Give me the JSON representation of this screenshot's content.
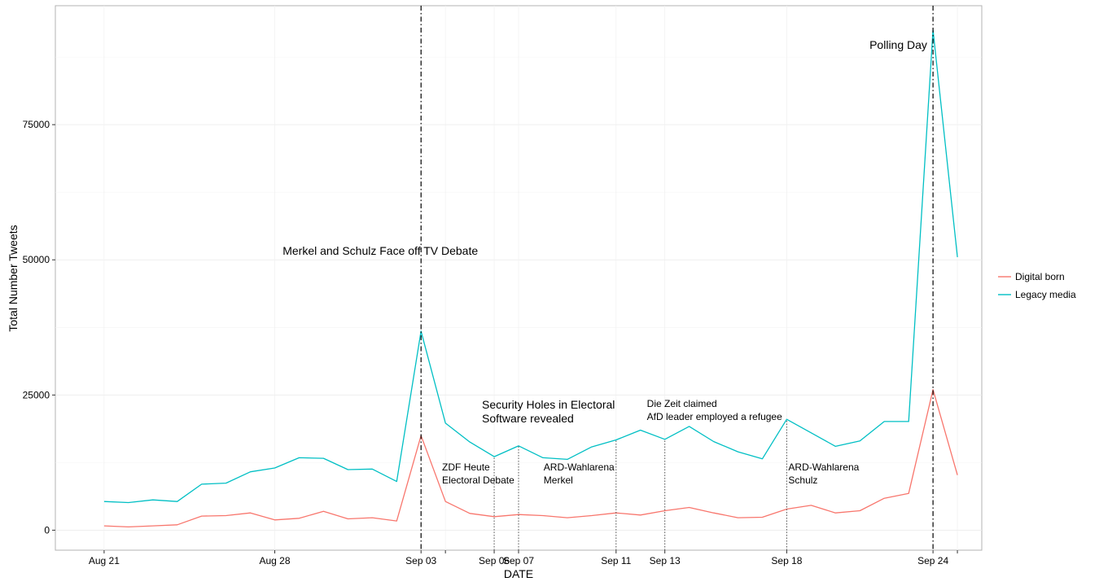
{
  "chart_data": {
    "type": "line",
    "xlabel": "DATE",
    "ylabel": "Total Number Tweets",
    "ylim": [
      -3700,
      97000
    ],
    "xlim": [
      "2017-08-19",
      "2017-09-26"
    ],
    "y_ticks": [
      0,
      25000,
      50000,
      75000
    ],
    "y_tick_labels": [
      "0",
      "25000",
      "50000",
      "75000"
    ],
    "x_ticks": [
      {
        "date": "2017-08-21",
        "label": "Aug 21"
      },
      {
        "date": "2017-08-28",
        "label": "Aug 28"
      },
      {
        "date": "2017-09-03",
        "label": "Sep 03"
      },
      {
        "date": "2017-09-04",
        "label": ""
      },
      {
        "date": "2017-09-06",
        "label": "Sep 06"
      },
      {
        "date": "2017-09-07",
        "label": "Sep 07"
      },
      {
        "date": "2017-09-11",
        "label": "Sep 11"
      },
      {
        "date": "2017-09-13",
        "label": "Sep 13"
      },
      {
        "date": "2017-09-18",
        "label": "Sep 18"
      },
      {
        "date": "2017-09-24",
        "label": "Sep 24"
      },
      {
        "date": "2017-09-25",
        "label": ""
      }
    ],
    "grid": true,
    "legend_position": "right",
    "x": [
      "2017-08-21",
      "2017-08-22",
      "2017-08-23",
      "2017-08-24",
      "2017-08-25",
      "2017-08-26",
      "2017-08-27",
      "2017-08-28",
      "2017-08-29",
      "2017-08-30",
      "2017-08-31",
      "2017-09-01",
      "2017-09-02",
      "2017-09-03",
      "2017-09-04",
      "2017-09-05",
      "2017-09-06",
      "2017-09-07",
      "2017-09-08",
      "2017-09-09",
      "2017-09-10",
      "2017-09-11",
      "2017-09-12",
      "2017-09-13",
      "2017-09-14",
      "2017-09-15",
      "2017-09-16",
      "2017-09-17",
      "2017-09-18",
      "2017-09-19",
      "2017-09-20",
      "2017-09-21",
      "2017-09-22",
      "2017-09-23",
      "2017-09-24",
      "2017-09-25"
    ],
    "series": [
      {
        "name": "Digital born",
        "color": "#F8766D",
        "values": [
          800,
          600,
          800,
          1000,
          2600,
          2700,
          3200,
          1900,
          2200,
          3500,
          2100,
          2300,
          1700,
          17500,
          5300,
          3100,
          2500,
          2900,
          2700,
          2300,
          2700,
          3200,
          2800,
          3600,
          4200,
          3200,
          2300,
          2400,
          3900,
          4600,
          3200,
          3600,
          5900,
          6800,
          26000,
          10200
        ]
      },
      {
        "name": "Legacy media",
        "color": "#00BFC4",
        "values": [
          5300,
          5100,
          5600,
          5300,
          8500,
          8700,
          10800,
          11500,
          13400,
          13300,
          11200,
          11300,
          9000,
          36800,
          19800,
          16300,
          13600,
          15600,
          13400,
          13100,
          15400,
          16700,
          18500,
          16800,
          19200,
          16400,
          14500,
          13200,
          20500,
          18000,
          15500,
          16500,
          20100,
          20100,
          92500,
          50500
        ]
      }
    ],
    "major_events": [
      {
        "date": "2017-09-03",
        "lines": [
          "Merkel and Schulz Face off TV Debate"
        ]
      },
      {
        "date": "2017-09-24",
        "lines": [
          "Polling Day"
        ]
      }
    ],
    "minor_events": [
      {
        "date": "2017-09-06",
        "lines": [
          "ZDF Heute",
          "Electoral Debate"
        ]
      },
      {
        "date": "2017-09-07",
        "lines": [
          "Security Holes in Electoral",
          "Software revealed"
        ]
      },
      {
        "date": "2017-09-11",
        "lines": [
          "ARD-Wahlarena",
          "Merkel"
        ]
      },
      {
        "date": "2017-09-13",
        "lines": [
          "Die Zeit claimed",
          "AfD leader employed a refugee"
        ]
      },
      {
        "date": "2017-09-18",
        "lines": [
          "ARD-Wahlarena",
          "Schulz"
        ]
      }
    ]
  }
}
